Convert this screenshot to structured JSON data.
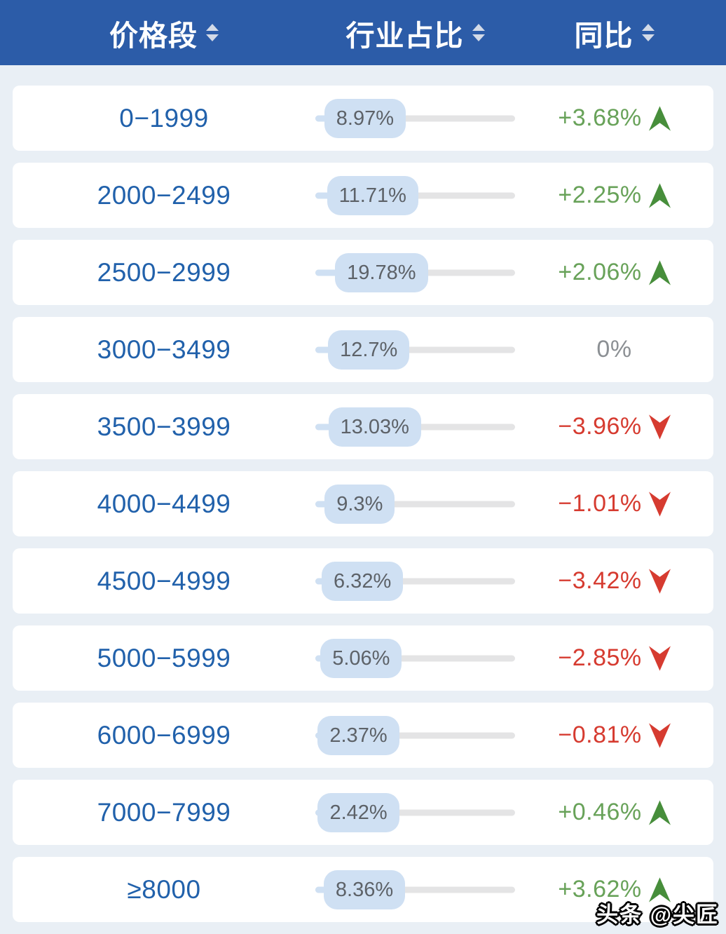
{
  "header": {
    "columns": [
      {
        "label": "价格段"
      },
      {
        "label": "行业占比"
      },
      {
        "label": "同比"
      }
    ]
  },
  "watermark": "头条 @尖匠",
  "colors": {
    "header_bg": "#2c5ca8",
    "page_bg": "#e9eff5",
    "price_text": "#2161ab",
    "pill_bg": "#cfe0f3",
    "track": "#e4e4e5",
    "positive_text": "#68a259",
    "positive_arrow": "#478e3b",
    "negative": "#d63b30",
    "neutral": "#8c9094"
  },
  "chart_data": {
    "type": "table",
    "columns": [
      "价格段",
      "行业占比",
      "同比"
    ],
    "rows": [
      {
        "price_range": "0−1999",
        "share_pct": 8.97,
        "share_label": "8.97%",
        "yoy_pct": 3.68,
        "yoy_label": "+3.68%",
        "trend": "up"
      },
      {
        "price_range": "2000−2499",
        "share_pct": 11.71,
        "share_label": "11.71%",
        "yoy_pct": 2.25,
        "yoy_label": "+2.25%",
        "trend": "up"
      },
      {
        "price_range": "2500−2999",
        "share_pct": 19.78,
        "share_label": "19.78%",
        "yoy_pct": 2.06,
        "yoy_label": "+2.06%",
        "trend": "up"
      },
      {
        "price_range": "3000−3499",
        "share_pct": 12.7,
        "share_label": "12.7%",
        "yoy_pct": 0,
        "yoy_label": "0%",
        "trend": "flat"
      },
      {
        "price_range": "3500−3999",
        "share_pct": 13.03,
        "share_label": "13.03%",
        "yoy_pct": -3.96,
        "yoy_label": "−3.96%",
        "trend": "down"
      },
      {
        "price_range": "4000−4499",
        "share_pct": 9.3,
        "share_label": "9.3%",
        "yoy_pct": -1.01,
        "yoy_label": "−1.01%",
        "trend": "down"
      },
      {
        "price_range": "4500−4999",
        "share_pct": 6.32,
        "share_label": "6.32%",
        "yoy_pct": -3.42,
        "yoy_label": "−3.42%",
        "trend": "down"
      },
      {
        "price_range": "5000−5999",
        "share_pct": 5.06,
        "share_label": "5.06%",
        "yoy_pct": -2.85,
        "yoy_label": "−2.85%",
        "trend": "down"
      },
      {
        "price_range": "6000−6999",
        "share_pct": 2.37,
        "share_label": "2.37%",
        "yoy_pct": -0.81,
        "yoy_label": "−0.81%",
        "trend": "down"
      },
      {
        "price_range": "7000−7999",
        "share_pct": 2.42,
        "share_label": "2.42%",
        "yoy_pct": 0.46,
        "yoy_label": "+0.46%",
        "trend": "up"
      },
      {
        "price_range": "≥8000",
        "share_pct": 8.36,
        "share_label": "8.36%",
        "yoy_pct": 3.62,
        "yoy_label": "+3.62%",
        "trend": "up"
      }
    ]
  }
}
